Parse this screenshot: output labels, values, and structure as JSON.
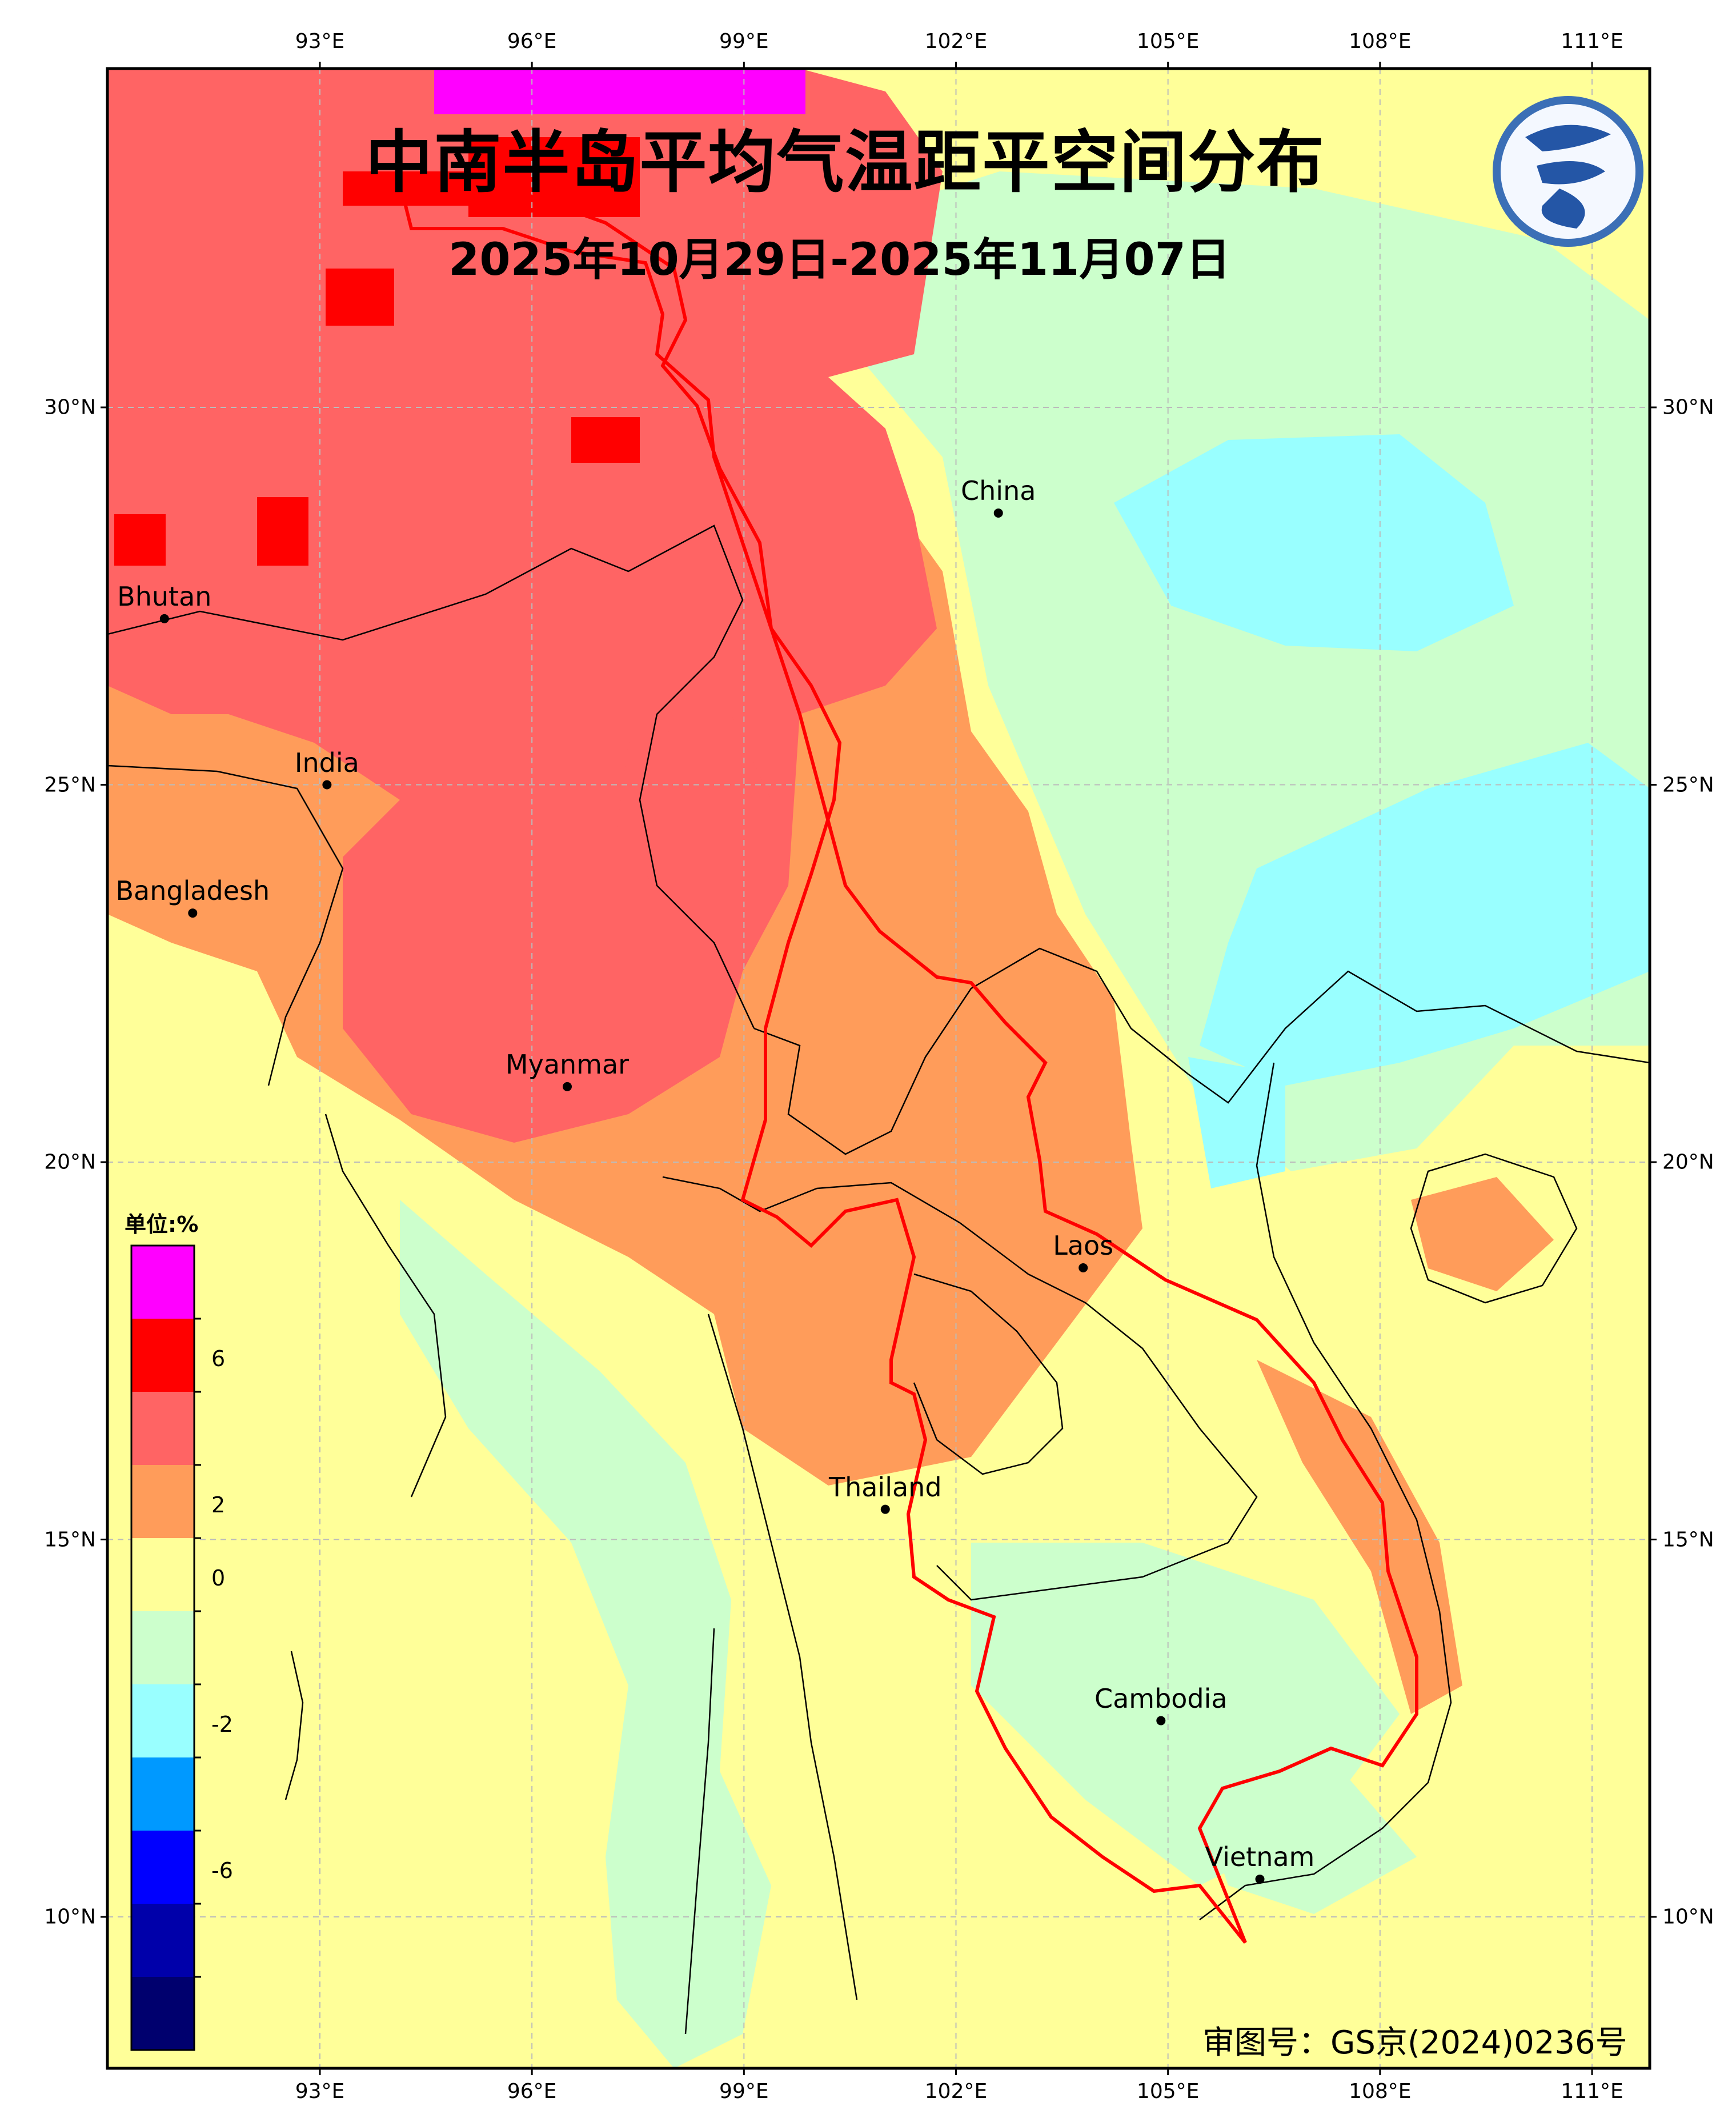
{
  "title": "中南半岛平均气温距平空间分布",
  "date_range": "2025年10月29日-2025年11月07日",
  "approval_number": "审图号：GS京(2024)0236号",
  "logo": "cma-logo",
  "map": {
    "lon_range": [
      90,
      112
    ],
    "lat_range": [
      8,
      35
    ],
    "lon_ticks": [
      "93°E",
      "96°E",
      "99°E",
      "102°E",
      "105°E",
      "108°E",
      "111°E"
    ],
    "lat_ticks": [
      "30°N",
      "25°N",
      "20°N",
      "15°N",
      "10°N"
    ],
    "lon_values": [
      93,
      96,
      99,
      102,
      105,
      108,
      111
    ],
    "lat_values": [
      30,
      25,
      20,
      15,
      10
    ],
    "grid": true
  },
  "cities": [
    {
      "name": "China",
      "lon": 102.6,
      "lat": 28.6
    },
    {
      "name": "Bhutan",
      "lon": 90.8,
      "lat": 27.2
    },
    {
      "name": "India",
      "lon": 93.1,
      "lat": 25.0
    },
    {
      "name": "Bangladesh",
      "lon": 91.2,
      "lat": 23.3
    },
    {
      "name": "Myanmar",
      "lon": 96.5,
      "lat": 21.0
    },
    {
      "name": "Laos",
      "lon": 103.8,
      "lat": 18.6
    },
    {
      "name": "Thailand",
      "lon": 101.0,
      "lat": 15.4
    },
    {
      "name": "Cambodia",
      "lon": 104.9,
      "lat": 12.6
    },
    {
      "name": "Vietnam",
      "lon": 106.3,
      "lat": 10.5
    }
  ],
  "legend": {
    "unit": "单位:%",
    "tick_labels": [
      "6",
      "2",
      "0",
      "-2",
      "-6"
    ],
    "tick_values": [
      6,
      2,
      0,
      -2,
      -6
    ],
    "bins": [
      {
        "range": "> 8",
        "color": "#ff00ff"
      },
      {
        "range": "4 ~ 6",
        "color": "#ff0000"
      },
      {
        "range": "2 ~ 4",
        "color": "#ff6464"
      },
      {
        "range": "1 ~ 2",
        "color": "#ff9c5a"
      },
      {
        "range": "0 ~ 1",
        "color": "#ffff99"
      },
      {
        "range": "-1 ~ 0",
        "color": "#ccffcc"
      },
      {
        "range": "-2 ~ -1",
        "color": "#99ffff"
      },
      {
        "range": "-4 ~ -2",
        "color": "#0099ff"
      },
      {
        "range": "-6 ~ -4",
        "color": "#0000ff"
      },
      {
        "range": "-8 ~ -6",
        "color": "#0000aa"
      },
      {
        "range": "< -8",
        "color": "#00006e"
      }
    ]
  },
  "anomaly_regions": [
    {
      "level": "0 ~ 1",
      "color": "#ffff99",
      "desc": "background"
    },
    {
      "level": "-1 ~ 0",
      "color": "#ccffcc",
      "desc": "south China / coasts"
    },
    {
      "level": "-2 ~ -1",
      "color": "#99ffff",
      "desc": "Guangxi / Guangdong"
    },
    {
      "level": "1 ~ 2",
      "color": "#ff9c5a",
      "desc": "Myanmar / Laos / N Thailand"
    },
    {
      "level": "2 ~ 4",
      "color": "#ff6464",
      "desc": "Tibet / N Myanmar"
    },
    {
      "level": "4 ~ 6",
      "color": "#ff0000",
      "desc": "Tibet patches"
    },
    {
      "level": "> 8",
      "color": "#ff00ff",
      "desc": "north edge"
    }
  ],
  "colors": {
    "border_red": "#ff0000",
    "frame": "#000000",
    "grid": "#bbbbbb"
  }
}
